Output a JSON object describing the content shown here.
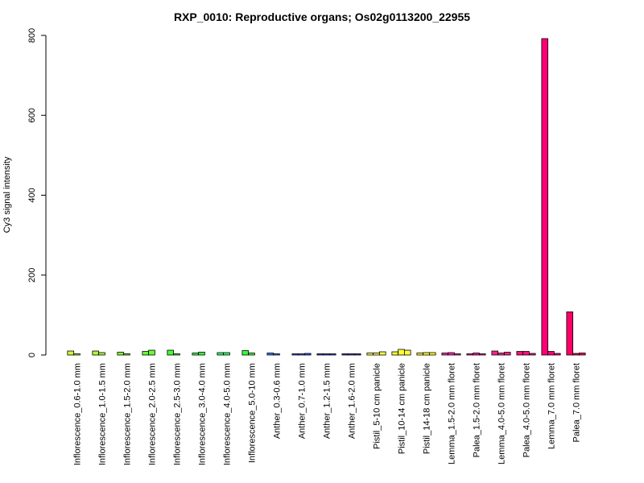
{
  "chart_data": {
    "type": "bar",
    "title": "RXP_0010: Reproductive organs; Os02g0113200_22955",
    "xlabel": "",
    "ylabel": "Cy3 signal intensity",
    "ylim": [
      0,
      800
    ],
    "yticks": [
      "0",
      "200",
      "400",
      "600",
      "800"
    ],
    "grid": false,
    "legend": "none",
    "categories": [
      "Inflorescence_0.6-1.0 mm",
      "Inflorescence_1.0-1.5 mm",
      "Inflorescence_1.5-2.0 mm",
      "Inflorescence_2.0-2.5 mm",
      "Inflorescence_2.5-3.0 mm",
      "Inflorescence_3.0-4.0 mm",
      "Inflorescence_4.0-5.0 mm",
      "Inflorescence_5.0-10 mm",
      "Anther_0.3-0.6 mm",
      "Anther_0.7-1.0 mm",
      "Anther_1.2-1.5 mm",
      "Anther_1.6-2.0 mm",
      "Pistil_5-10 cm panicle",
      "Pistil_10-14 cm panicle",
      "Pistil_14-18 cm panicle",
      "Lemma_1.5-2.0 mm floret",
      "Palea_1.5-2.0 mm floret",
      "Lemma_4.0-5.0 mm floret",
      "Palea_4.0-5.0 mm floret",
      "Lemma_7.0 mm floret",
      "Palea_7.0 mm floret"
    ],
    "colors": [
      "#ccff33",
      "#aaff33",
      "#88ff33",
      "#66ff33",
      "#44ff33",
      "#33ff44",
      "#33ff66",
      "#33ff33",
      "#3377ff",
      "#3355ff",
      "#3344ee",
      "#3333dd",
      "#ffff44",
      "#ffff33",
      "#ffff22",
      "#ff22aa",
      "#ff1199",
      "#ff2288",
      "#ff1177",
      "#ff0077",
      "#ff0066"
    ],
    "series": [
      {
        "values": [
          10,
          10,
          7,
          9,
          12,
          5,
          6,
          11,
          5,
          3,
          3,
          3,
          5,
          8,
          5,
          5,
          3,
          10,
          9,
          792,
          108
        ]
      },
      {
        "values": [
          3,
          6,
          3,
          12,
          3,
          7,
          6,
          5,
          3,
          3,
          3,
          3,
          5,
          14,
          6,
          6,
          5,
          5,
          9,
          9,
          4
        ]
      },
      {
        "values": [
          0,
          0,
          0,
          0,
          0,
          0,
          0,
          0,
          0,
          4,
          3,
          3,
          8,
          12,
          6,
          3,
          3,
          7,
          4,
          4,
          5
        ]
      }
    ]
  }
}
